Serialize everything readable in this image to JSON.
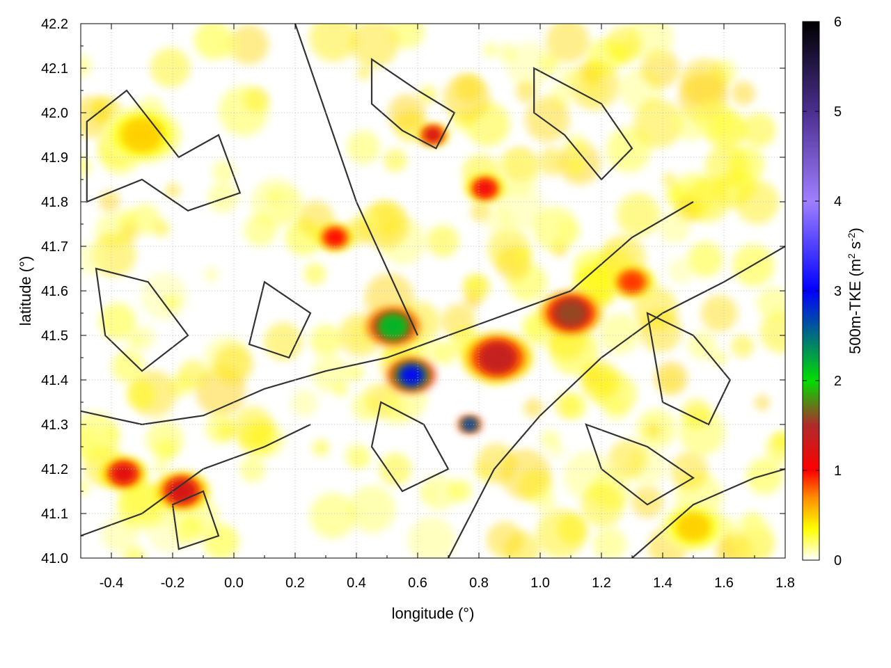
{
  "chart_data": {
    "type": "heatmap",
    "xlabel": "longitude (°)",
    "ylabel": "latitude (°)",
    "colorbar_label": "500m-TKE (m² s⁻²)",
    "colorbar_label_parts": {
      "base": "500m-TKE (m",
      "sup1": "2",
      "mid": " s",
      "sup2": "-2",
      "end": ")"
    },
    "xlim": [
      -0.5,
      1.8
    ],
    "ylim": [
      41.0,
      42.2
    ],
    "clim": [
      0,
      6
    ],
    "xticks": [
      -0.4,
      -0.2,
      0.0,
      0.2,
      0.4,
      0.6,
      0.8,
      1.0,
      1.2,
      1.4,
      1.6,
      1.8
    ],
    "xtick_labels": [
      "-0.4",
      "-0.2",
      "0.0",
      "0.2",
      "0.4",
      "0.6",
      "0.8",
      "1.0",
      "1.2",
      "1.4",
      "1.6",
      "1.8"
    ],
    "yticks": [
      41.0,
      41.1,
      41.2,
      41.3,
      41.4,
      41.5,
      41.6,
      41.7,
      41.8,
      41.9,
      42.0,
      42.1,
      42.2
    ],
    "ytick_labels": [
      "41.0",
      "41.1",
      "41.2",
      "41.3",
      "41.4",
      "41.5",
      "41.6",
      "41.7",
      "41.8",
      "41.9",
      "42.0",
      "42.1",
      "42.2"
    ],
    "cticks": [
      0,
      1,
      2,
      3,
      4,
      5,
      6
    ],
    "ctick_labels": [
      "0",
      "1",
      "2",
      "3",
      "4",
      "5",
      "6"
    ],
    "grid": true,
    "colormap": [
      {
        "v": 0.0,
        "color": "#ffffff"
      },
      {
        "v": 0.35,
        "color": "#ffff00"
      },
      {
        "v": 0.7,
        "color": "#ff8c00"
      },
      {
        "v": 1.0,
        "color": "#ff0000"
      },
      {
        "v": 1.5,
        "color": "#b02a2a"
      },
      {
        "v": 2.0,
        "color": "#00dd00"
      },
      {
        "v": 3.0,
        "color": "#0000ff"
      },
      {
        "v": 4.0,
        "color": "#9f7fff"
      },
      {
        "v": 5.0,
        "color": "#4a2f8f"
      },
      {
        "v": 6.0,
        "color": "#000000"
      }
    ],
    "hotspots": [
      {
        "lon": 0.52,
        "lat": 41.52,
        "value": 2.2,
        "r": 0.07
      },
      {
        "lon": 0.58,
        "lat": 41.41,
        "value": 3.0,
        "r": 0.06
      },
      {
        "lon": 0.86,
        "lat": 41.45,
        "value": 1.4,
        "r": 0.09
      },
      {
        "lon": 1.1,
        "lat": 41.55,
        "value": 1.6,
        "r": 0.08
      },
      {
        "lon": 0.82,
        "lat": 41.83,
        "value": 1.1,
        "r": 0.05
      },
      {
        "lon": 0.65,
        "lat": 41.95,
        "value": 1.3,
        "r": 0.04
      },
      {
        "lon": 0.33,
        "lat": 41.72,
        "value": 1.0,
        "r": 0.05
      },
      {
        "lon": -0.36,
        "lat": 41.19,
        "value": 1.2,
        "r": 0.06
      },
      {
        "lon": -0.17,
        "lat": 41.15,
        "value": 1.3,
        "r": 0.07
      },
      {
        "lon": 0.77,
        "lat": 41.3,
        "value": 2.8,
        "r": 0.03
      },
      {
        "lon": 1.3,
        "lat": 41.62,
        "value": 0.9,
        "r": 0.06
      },
      {
        "lon": -0.3,
        "lat": 41.95,
        "value": 0.5,
        "r": 0.1
      },
      {
        "lon": 1.5,
        "lat": 41.07,
        "value": 0.5,
        "r": 0.08
      }
    ]
  }
}
